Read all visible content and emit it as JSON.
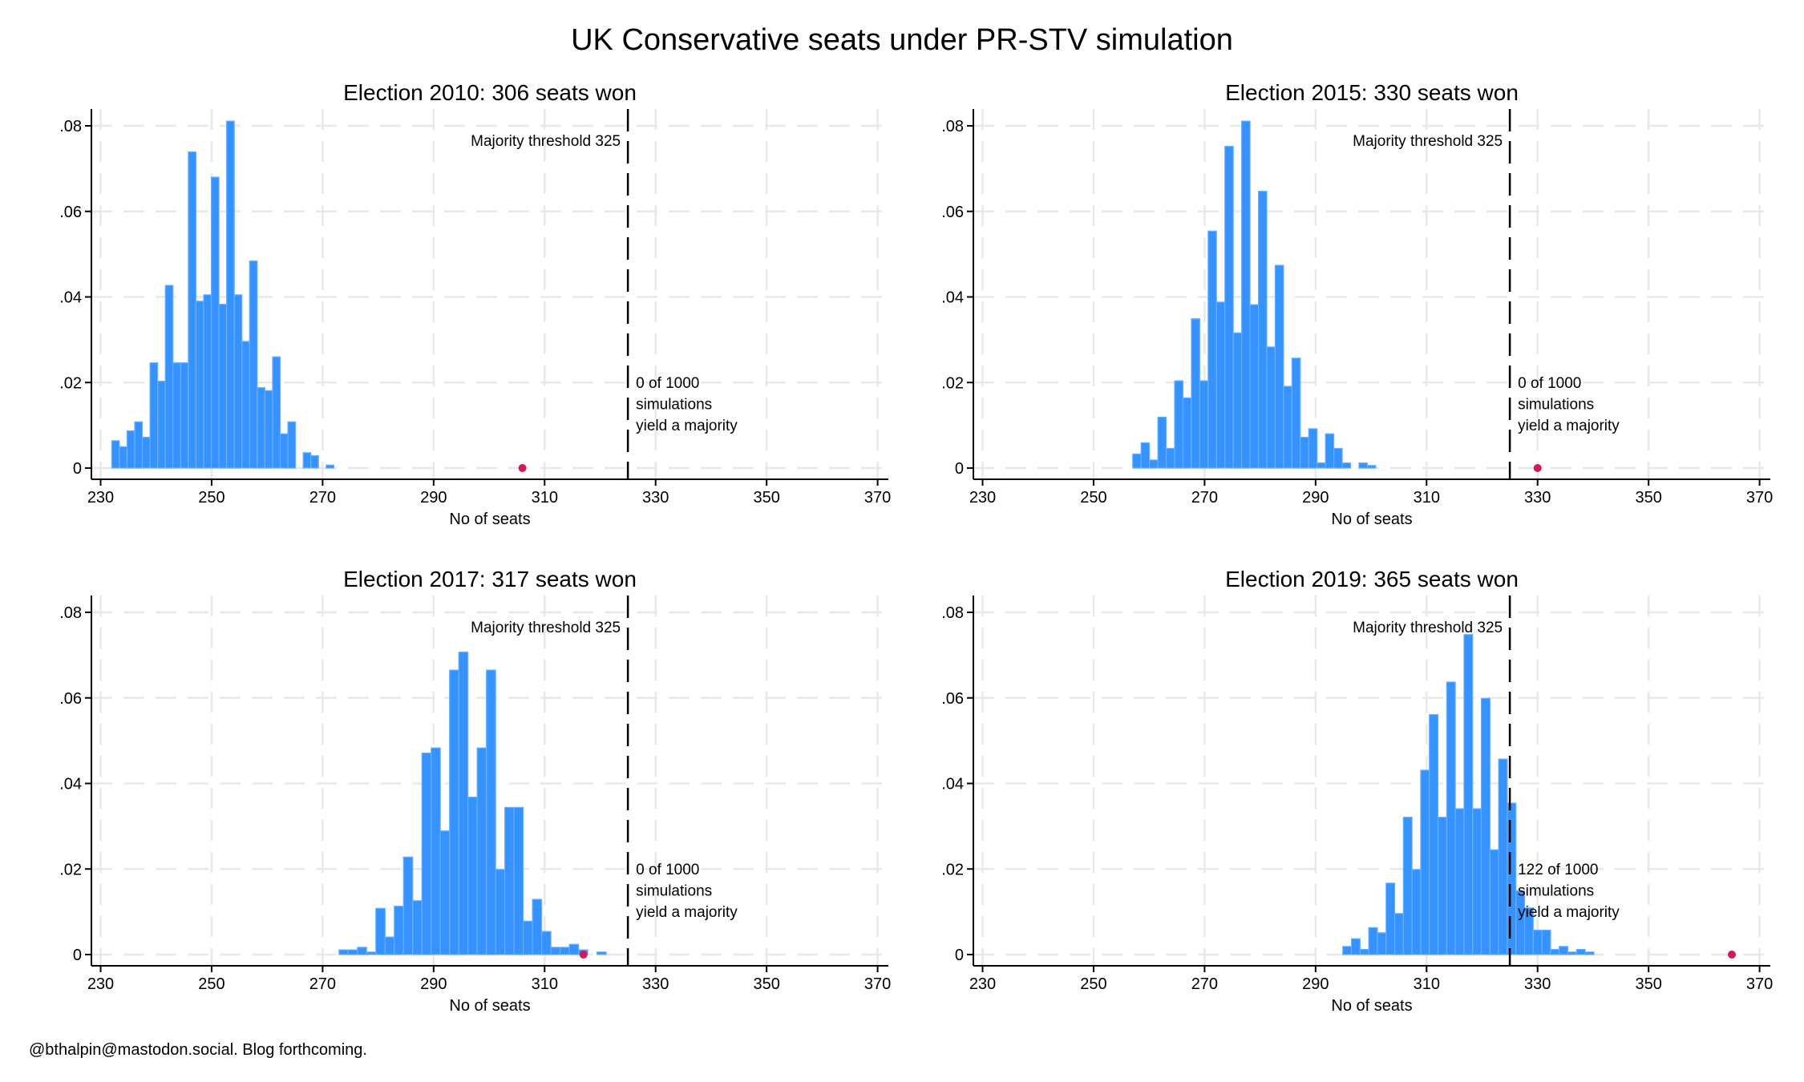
{
  "title": "UK Conservative seats under PR-STV simulation",
  "footer": "@bthalpin@mastodon.social. Blog forthcoming.",
  "colors": {
    "bar": "#3592fe",
    "bar_edge": "#66b0ff",
    "marker": "#d6185a",
    "grid": "#e8e8e8",
    "threshold_line": "#000000"
  },
  "chart_data": [
    {
      "type": "bar",
      "title": "Election 2010: 306 seats won",
      "xlabel": "No of seats",
      "ylabel": "",
      "xlim": [
        230,
        370
      ],
      "ylim": [
        0,
        0.08
      ],
      "xticks": [
        230,
        250,
        270,
        290,
        310,
        330,
        350,
        370
      ],
      "yticks": [
        {
          "value": 0,
          "label": "0"
        },
        {
          "value": 0.02,
          "label": ".02"
        },
        {
          "value": 0.04,
          "label": ".04"
        },
        {
          "value": 0.06,
          "label": ".06"
        },
        {
          "value": 0.08,
          "label": ".08"
        }
      ],
      "grid": true,
      "bin_start": 232.0,
      "bin_width": 1.38,
      "density": [
        0.0064,
        0.005,
        0.0087,
        0.0108,
        0.0072,
        0.0246,
        0.0203,
        0.0427,
        0.0246,
        0.0246,
        0.0739,
        0.039,
        0.0405,
        0.068,
        0.0383,
        0.0811,
        0.0405,
        0.0296,
        0.0484,
        0.0188,
        0.0181,
        0.026,
        0.008,
        0.0108,
        0,
        0.0036,
        0.0029,
        0,
        0.0007
      ],
      "seats_won": 306,
      "threshold": 325,
      "threshold_label": "Majority threshold 325",
      "majority_note": [
        "0 of 1000",
        "simulations",
        "yield a majority"
      ]
    },
    {
      "type": "bar",
      "title": "Election 2015: 330 seats won",
      "xlabel": "No of seats",
      "ylabel": "",
      "xlim": [
        230,
        370
      ],
      "ylim": [
        0,
        0.08
      ],
      "xticks": [
        230,
        250,
        270,
        290,
        310,
        330,
        350,
        370
      ],
      "yticks": [
        {
          "value": 0,
          "label": "0"
        },
        {
          "value": 0.02,
          "label": ".02"
        },
        {
          "value": 0.04,
          "label": ".04"
        },
        {
          "value": 0.06,
          "label": ".06"
        },
        {
          "value": 0.08,
          "label": ".08"
        }
      ],
      "grid": true,
      "bin_start": 257.05,
      "bin_width": 1.51,
      "density": [
        0.0033,
        0.0059,
        0.0019,
        0.0119,
        0.0046,
        0.0204,
        0.0164,
        0.0349,
        0.0204,
        0.0554,
        0.0388,
        0.0752,
        0.0316,
        0.0811,
        0.0382,
        0.0647,
        0.0283,
        0.0474,
        0.0191,
        0.0257,
        0.0072,
        0.0092,
        0.0012,
        0.008,
        0.0046,
        0.0012,
        0,
        0.0012,
        0.0006
      ],
      "seats_won": 330,
      "threshold": 325,
      "threshold_label": "Majority threshold 325",
      "majority_note": [
        "0 of 1000",
        "simulations",
        "yield a majority"
      ]
    },
    {
      "type": "bar",
      "title": "Election 2017: 317 seats won",
      "xlabel": "No of seats",
      "ylabel": "",
      "xlim": [
        230,
        370
      ],
      "ylim": [
        0,
        0.08
      ],
      "xticks": [
        230,
        250,
        270,
        290,
        310,
        330,
        350,
        370
      ],
      "yticks": [
        {
          "value": 0,
          "label": "0"
        },
        {
          "value": 0.02,
          "label": ".02"
        },
        {
          "value": 0.04,
          "label": ".04"
        },
        {
          "value": 0.06,
          "label": ".06"
        },
        {
          "value": 0.08,
          "label": ".08"
        }
      ],
      "grid": true,
      "bin_start": 272.95,
      "bin_width": 1.66,
      "density": [
        0.0011,
        0.0011,
        0.0017,
        0.0006,
        0.0108,
        0.0041,
        0.0113,
        0.0228,
        0.0126,
        0.0471,
        0.0483,
        0.0289,
        0.0665,
        0.0707,
        0.0368,
        0.0483,
        0.0665,
        0.0199,
        0.0344,
        0.0344,
        0.0078,
        0.0129,
        0.0054,
        0.0017,
        0.0017,
        0.0024,
        0.0011,
        0,
        0.0006
      ],
      "seats_won": 317,
      "threshold": 325,
      "threshold_label": "Majority threshold 325",
      "majority_note": [
        "0 of 1000",
        "simulations",
        "yield a majority"
      ]
    },
    {
      "type": "bar",
      "title": "Election 2019: 365 seats won",
      "xlabel": "No of seats",
      "ylabel": "",
      "xlim": [
        230,
        370
      ],
      "ylim": [
        0,
        0.08
      ],
      "xticks": [
        230,
        250,
        270,
        290,
        310,
        330,
        350,
        370
      ],
      "yticks": [
        {
          "value": 0,
          "label": "0"
        },
        {
          "value": 0.02,
          "label": ".02"
        },
        {
          "value": 0.04,
          "label": ".04"
        },
        {
          "value": 0.06,
          "label": ".06"
        },
        {
          "value": 0.08,
          "label": ".08"
        }
      ],
      "grid": true,
      "bin_start": 294.9,
      "bin_width": 1.56,
      "density": [
        0.0019,
        0.0037,
        0.0012,
        0.0063,
        0.0051,
        0.0167,
        0.0096,
        0.0321,
        0.0199,
        0.0431,
        0.0561,
        0.0321,
        0.0637,
        0.0341,
        0.0748,
        0.0341,
        0.0599,
        0.0245,
        0.0457,
        0.0354,
        0.0149,
        0.0109,
        0.0057,
        0.0057,
        0.0012,
        0.0019,
        0.0006,
        0.0012,
        0.0006
      ],
      "seats_won": 365,
      "threshold": 325,
      "threshold_label": "Majority threshold 325",
      "majority_note": [
        "122 of 1000",
        "simulations",
        "yield a majority"
      ]
    }
  ]
}
